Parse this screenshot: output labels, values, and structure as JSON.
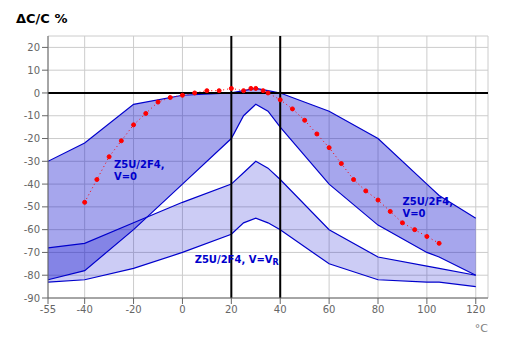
{
  "chart_data": {
    "type": "area",
    "title": "ΔC/C %",
    "xlabel": "°C",
    "xlim": [
      -55,
      125
    ],
    "ylim": [
      -90,
      25
    ],
    "xticks": [
      -55,
      -40,
      -20,
      0,
      20,
      40,
      60,
      80,
      100,
      120
    ],
    "yticks": [
      -90,
      -80,
      -70,
      -60,
      -50,
      -40,
      -30,
      -20,
      -10,
      0,
      10,
      20
    ],
    "grid": true,
    "vlines": [
      20,
      40
    ],
    "hlines": [
      0
    ],
    "series": [
      {
        "type": "band",
        "color": "#0000cc",
        "x": [
          -55,
          -40,
          -20,
          0,
          20,
          25,
          30,
          35,
          40,
          60,
          80,
          100,
          105,
          120
        ],
        "upper": [
          -30,
          -22,
          -5,
          -1,
          0,
          1,
          2,
          1,
          0,
          -8,
          -20,
          -40,
          -45,
          -55
        ],
        "lower": [
          -82,
          -78,
          -60,
          -40,
          -20,
          -10,
          -5,
          -8,
          -15,
          -40,
          -58,
          -70,
          -72,
          -80
        ]
      },
      {
        "type": "band",
        "color": "#0000cc",
        "x": [
          -55,
          -40,
          -20,
          0,
          20,
          25,
          30,
          35,
          40,
          60,
          80,
          100,
          105,
          120
        ],
        "upper": [
          -68,
          -66,
          -57,
          -48,
          -40,
          -35,
          -30,
          -33,
          -38,
          -60,
          -72,
          -76,
          -77,
          -80
        ],
        "lower": [
          -83,
          -82,
          -77,
          -70,
          -62,
          -57,
          -55,
          -57,
          -60,
          -75,
          -82,
          -83,
          -83,
          -85
        ]
      },
      {
        "type": "line",
        "color": "#ff0000",
        "line_style": "dotted",
        "marker": "o",
        "x": [
          -40,
          -35,
          -30,
          -25,
          -20,
          -15,
          -10,
          -5,
          0,
          5,
          10,
          15,
          20,
          25,
          28,
          30,
          33,
          35,
          40,
          45,
          50,
          55,
          60,
          65,
          70,
          75,
          80,
          85,
          90,
          95,
          100,
          105
        ],
        "values": [
          -48,
          -38,
          -28,
          -21,
          -14,
          -9,
          -4,
          -2,
          -1,
          0,
          1,
          1,
          2,
          1,
          2,
          2,
          1,
          0,
          -3,
          -7,
          -12,
          -18,
          -24,
          -31,
          -38,
          -43,
          -47,
          -52,
          -57,
          -60,
          -63,
          -66
        ]
      }
    ],
    "annotations": [
      {
        "text": "Z5U/2F4,\nV=0",
        "x": -28,
        "y": -34,
        "color": "#0000cc"
      },
      {
        "text": "Z5U/2F4,\nV=0",
        "x": 90,
        "y": -50,
        "color": "#0000cc"
      },
      {
        "text": "Z5U/2F4, V=V",
        "subscript": "R",
        "x": 5,
        "y": -73,
        "color": "#0000cc"
      }
    ]
  }
}
